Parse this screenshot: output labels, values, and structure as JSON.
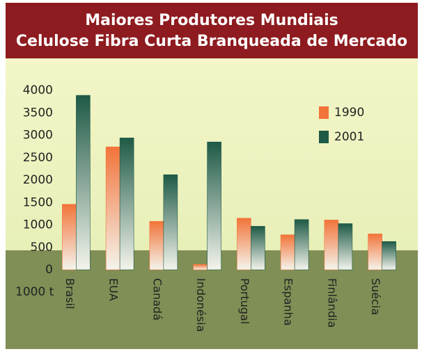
{
  "chart_data": {
    "type": "bar",
    "title": [
      "Maiores Produtores Mundiais",
      "Celulose Fibra Curta Branqueada de Mercado"
    ],
    "unit_label": "1000 t",
    "categories": [
      "Brasil",
      "EUA",
      "Canadá",
      "Indonésia",
      "Portugal",
      "Espanha",
      "Finlândia",
      "Suécia"
    ],
    "series": [
      {
        "name": "1990",
        "color": "#f2743a",
        "values": [
          1460,
          2740,
          1080,
          120,
          1150,
          780,
          1110,
          800
        ]
      },
      {
        "name": "2001",
        "color": "#1e5a46",
        "values": [
          3890,
          2940,
          2120,
          2850,
          970,
          1120,
          1030,
          630
        ]
      }
    ],
    "ylim": [
      0,
      4000
    ],
    "yticks": [
      0,
      500,
      1000,
      1500,
      2000,
      2500,
      3000,
      3500,
      4000
    ],
    "grid": false,
    "legend": "top-right"
  }
}
